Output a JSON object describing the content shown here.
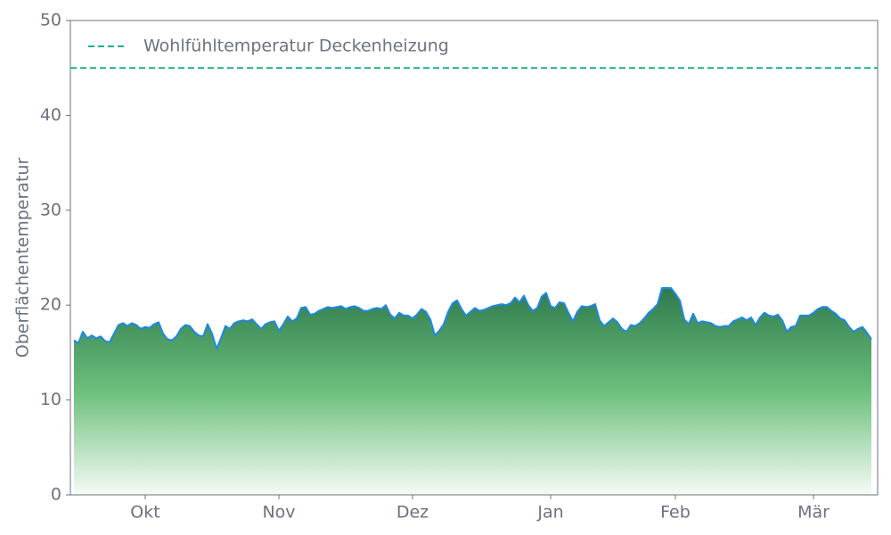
{
  "chart_data": {
    "type": "area",
    "y_label": "Oberflächentemperatur",
    "ylim": [
      0,
      50
    ],
    "yticks": [
      0,
      10,
      20,
      30,
      40,
      50
    ],
    "categories": [
      null,
      null,
      null,
      null,
      null,
      null,
      null,
      null,
      null,
      null,
      null,
      null,
      null,
      null,
      null,
      null,
      "Okt",
      null,
      null,
      null,
      null,
      null,
      null,
      null,
      null,
      null,
      null,
      null,
      null,
      null,
      null,
      null,
      null,
      null,
      null,
      null,
      null,
      null,
      null,
      null,
      null,
      null,
      null,
      null,
      null,
      null,
      "Nov",
      null,
      null,
      null,
      null,
      null,
      null,
      null,
      null,
      null,
      null,
      null,
      null,
      null,
      null,
      null,
      null,
      null,
      null,
      null,
      null,
      null,
      null,
      null,
      null,
      null,
      null,
      null,
      null,
      null,
      "Dez",
      null,
      null,
      null,
      null,
      null,
      null,
      null,
      null,
      null,
      null,
      null,
      null,
      null,
      null,
      null,
      null,
      null,
      null,
      null,
      null,
      null,
      null,
      null,
      null,
      null,
      null,
      null,
      null,
      null,
      null,
      "Jan",
      null,
      null,
      null,
      null,
      null,
      null,
      null,
      null,
      null,
      null,
      null,
      null,
      null,
      null,
      null,
      null,
      null,
      null,
      null,
      null,
      null,
      null,
      null,
      null,
      null,
      null,
      null,
      "Feb",
      null,
      null,
      null,
      null,
      null,
      null,
      null,
      null,
      null,
      null,
      null,
      null,
      null,
      null,
      null,
      null,
      null,
      null,
      null,
      null,
      null,
      null,
      null,
      null,
      null,
      null,
      null,
      null,
      null,
      null,
      "Mär",
      null,
      null,
      null,
      null,
      null,
      null,
      null,
      null,
      null,
      null,
      null,
      null,
      null
    ],
    "series": [
      {
        "color": "#1e88e5",
        "fill_gradient": [
          "#2f7a4d",
          "#6cc07c",
          "#f5fbf5"
        ],
        "values": [
          16.3,
          16.0,
          17.2,
          16.5,
          16.8,
          16.5,
          16.7,
          16.2,
          16.1,
          17.0,
          17.9,
          18.1,
          17.8,
          18.1,
          17.9,
          17.5,
          17.7,
          17.6,
          18.0,
          18.2,
          17.0,
          16.4,
          16.3,
          16.7,
          17.5,
          17.9,
          17.8,
          17.2,
          16.8,
          16.7,
          18.0,
          17.0,
          15.4,
          16.5,
          17.8,
          17.5,
          18.1,
          18.3,
          18.4,
          18.3,
          18.5,
          18.0,
          17.5,
          18.0,
          18.2,
          18.3,
          17.3,
          18.0,
          18.8,
          18.3,
          18.6,
          19.7,
          19.8,
          19.0,
          19.1,
          19.4,
          19.6,
          19.8,
          19.7,
          19.8,
          19.9,
          19.6,
          19.8,
          19.9,
          19.7,
          19.4,
          19.4,
          19.6,
          19.7,
          19.6,
          20.0,
          19.0,
          18.6,
          19.2,
          18.9,
          18.9,
          18.6,
          19.0,
          19.6,
          19.3,
          18.5,
          16.8,
          17.3,
          18.0,
          19.3,
          20.2,
          20.5,
          19.6,
          18.9,
          19.3,
          19.7,
          19.4,
          19.5,
          19.7,
          19.9,
          20.0,
          20.1,
          20.0,
          20.2,
          20.8,
          20.3,
          21.0,
          20.0,
          19.4,
          19.7,
          20.9,
          21.3,
          19.9,
          19.7,
          20.3,
          20.2,
          19.2,
          18.3,
          19.3,
          19.9,
          19.8,
          19.9,
          20.1,
          18.4,
          17.8,
          18.2,
          18.6,
          18.2,
          17.5,
          17.2,
          17.9,
          17.8,
          18.1,
          18.6,
          19.2,
          19.6,
          20.1,
          21.8,
          21.8,
          21.8,
          21.2,
          20.5,
          18.5,
          18.0,
          19.1,
          18.1,
          18.3,
          18.2,
          18.1,
          17.8,
          17.7,
          17.8,
          17.8,
          18.3,
          18.5,
          18.7,
          18.4,
          18.7,
          17.9,
          18.7,
          19.2,
          18.9,
          18.8,
          19.0,
          18.4,
          17.2,
          17.7,
          17.8,
          18.9,
          18.9,
          18.9,
          19.2,
          19.6,
          19.8,
          19.8,
          19.4,
          19.1,
          18.6,
          18.4,
          17.7,
          17.2,
          17.5,
          17.7,
          17.1,
          16.4
        ]
      }
    ],
    "hline": {
      "name": "Wohlfühltemperatur Deckenheizung",
      "value": 45,
      "color": "#1aaf8b",
      "dashed": true
    },
    "legend": "upper left"
  }
}
